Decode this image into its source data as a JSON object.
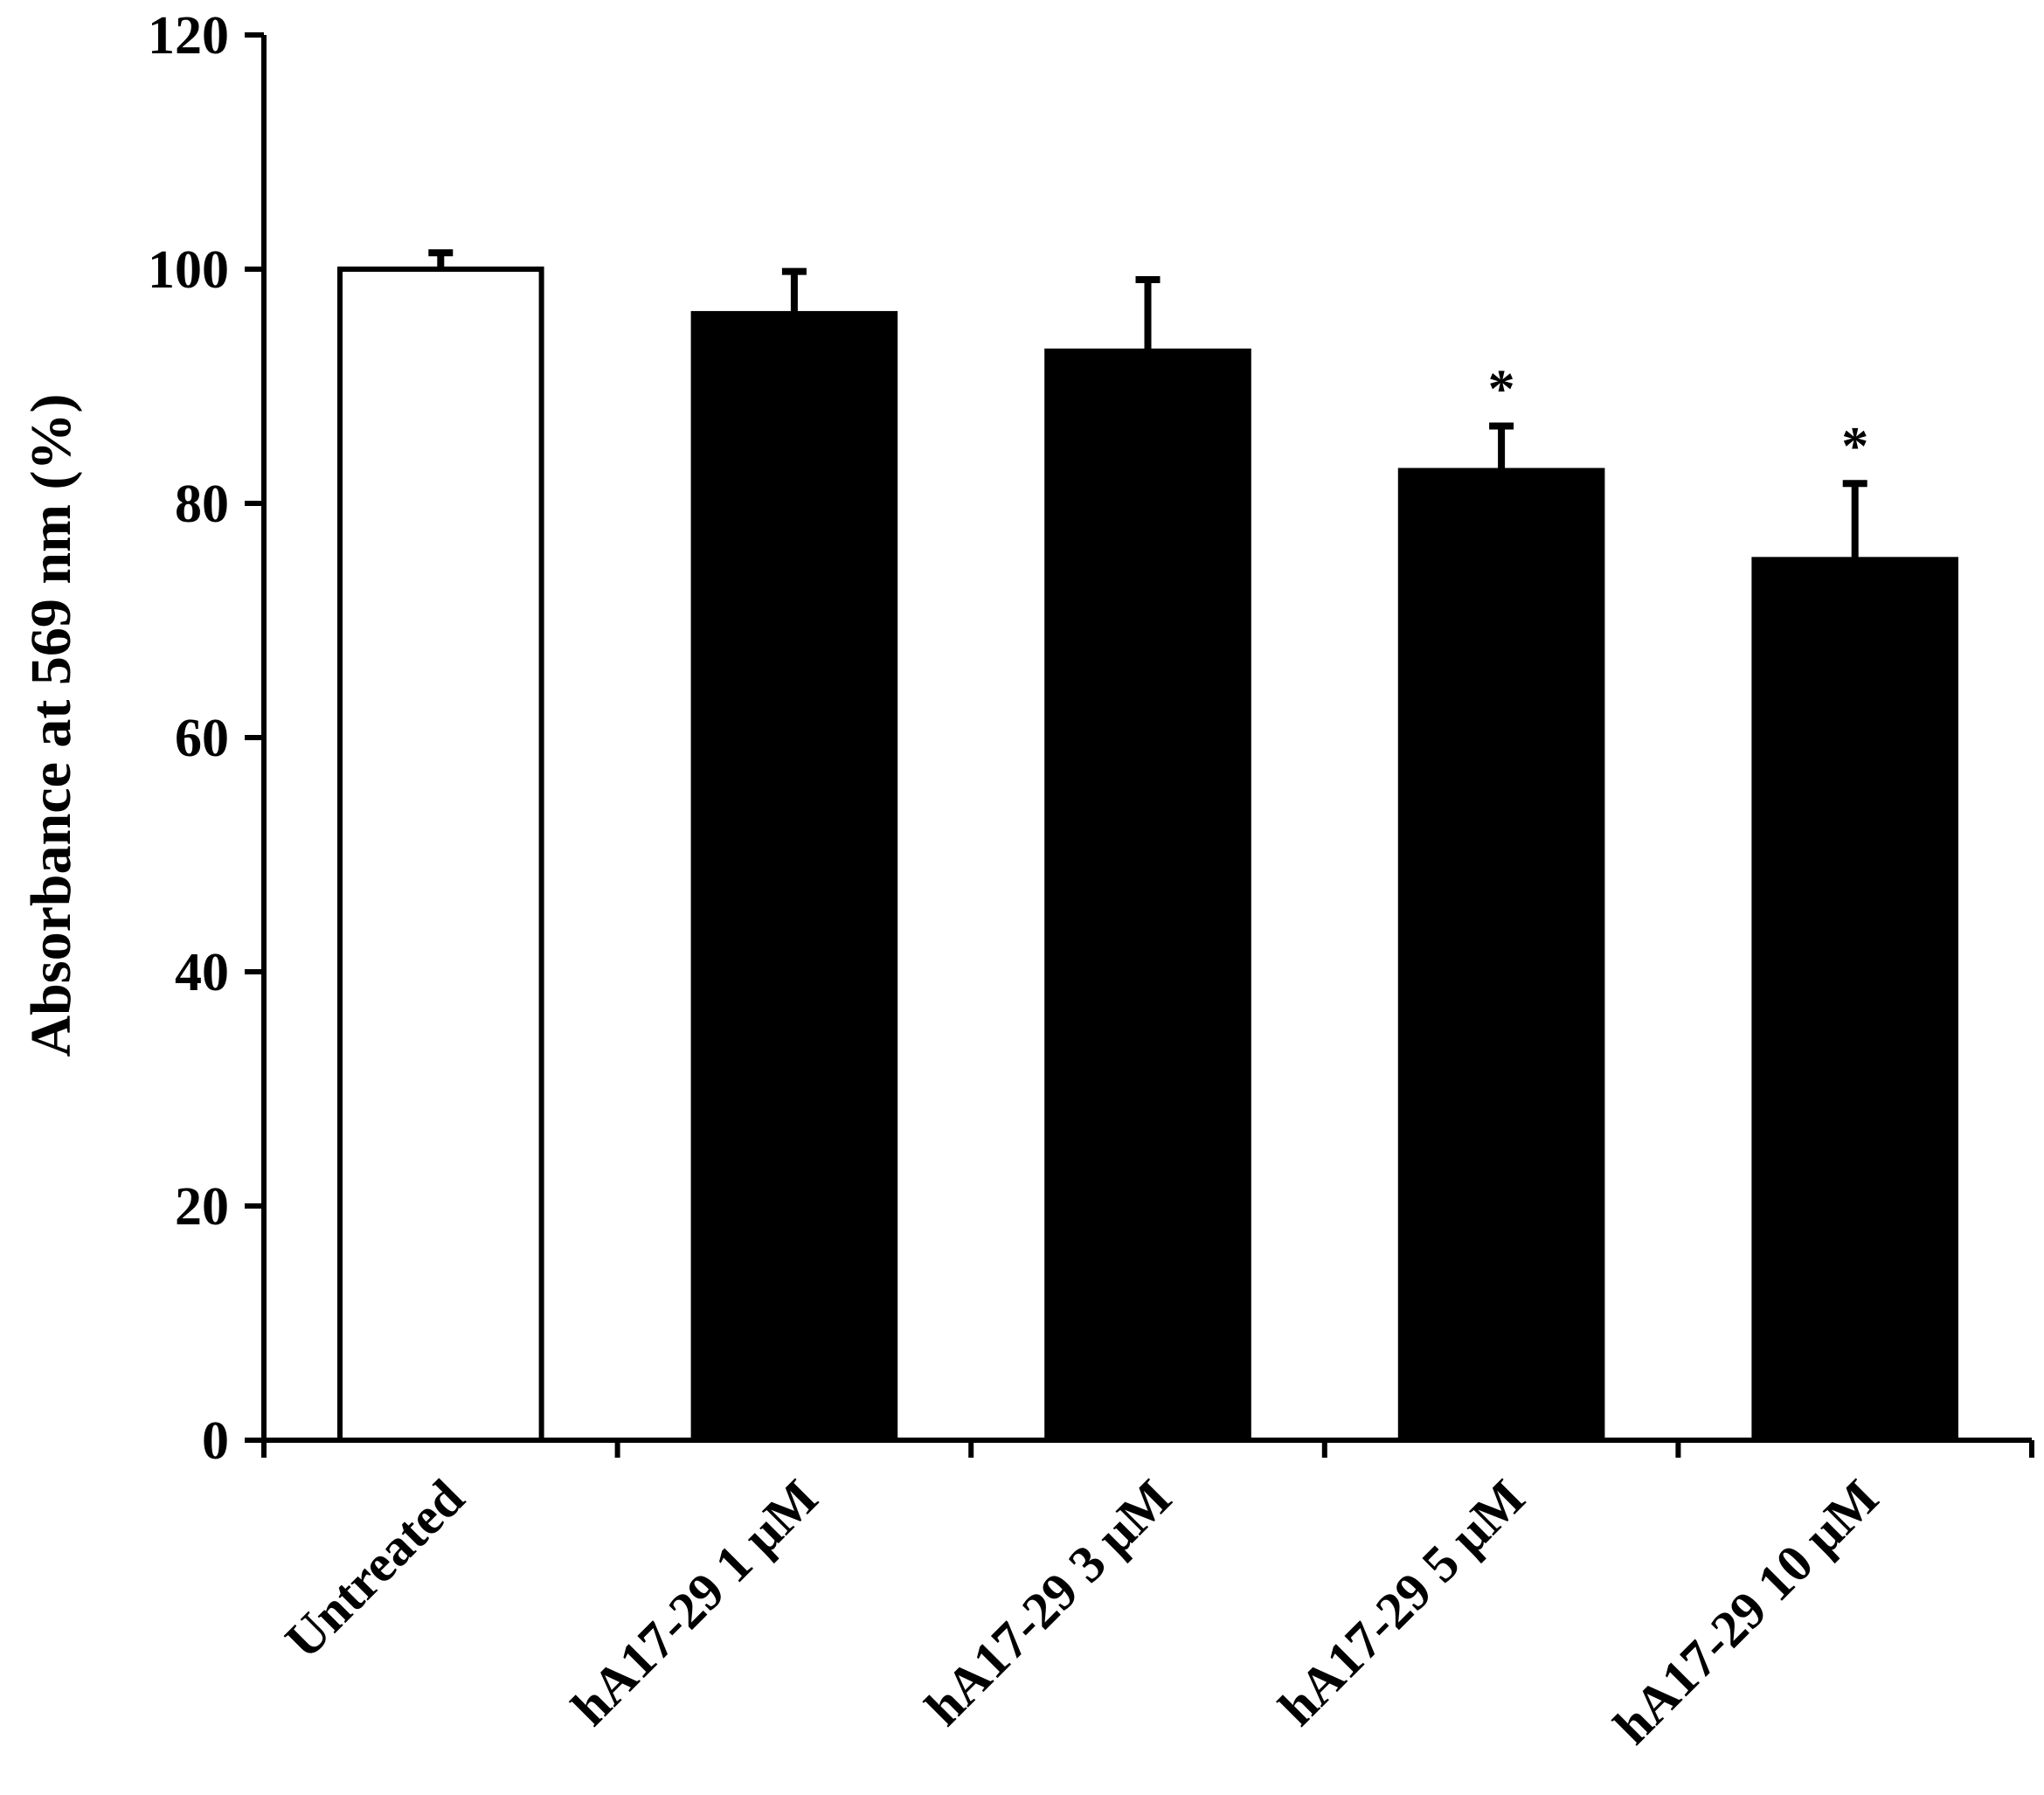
{
  "chart_data": {
    "type": "bar",
    "title": "",
    "xlabel": "",
    "ylabel": "Absorbance at 569 nm (%)",
    "ylim": [
      0,
      120
    ],
    "yticks": [
      0,
      20,
      40,
      60,
      80,
      100,
      120
    ],
    "categories": [
      "Untreated",
      "hA17-29 1 μM",
      "hA17-29 3 μM",
      "hA17-29 5 μM",
      "hA17-29 10 μM"
    ],
    "values": [
      100,
      96.2,
      93.0,
      82.8,
      75.2
    ],
    "error": [
      1.4,
      3.6,
      6.1,
      3.8,
      6.5
    ],
    "significance": [
      "",
      "",
      "",
      "*",
      "*"
    ],
    "bar_fill": [
      "#ffffff",
      "#000000",
      "#000000",
      "#000000",
      "#000000"
    ],
    "bar_stroke": "#000000",
    "grid": false,
    "legend": "none"
  }
}
